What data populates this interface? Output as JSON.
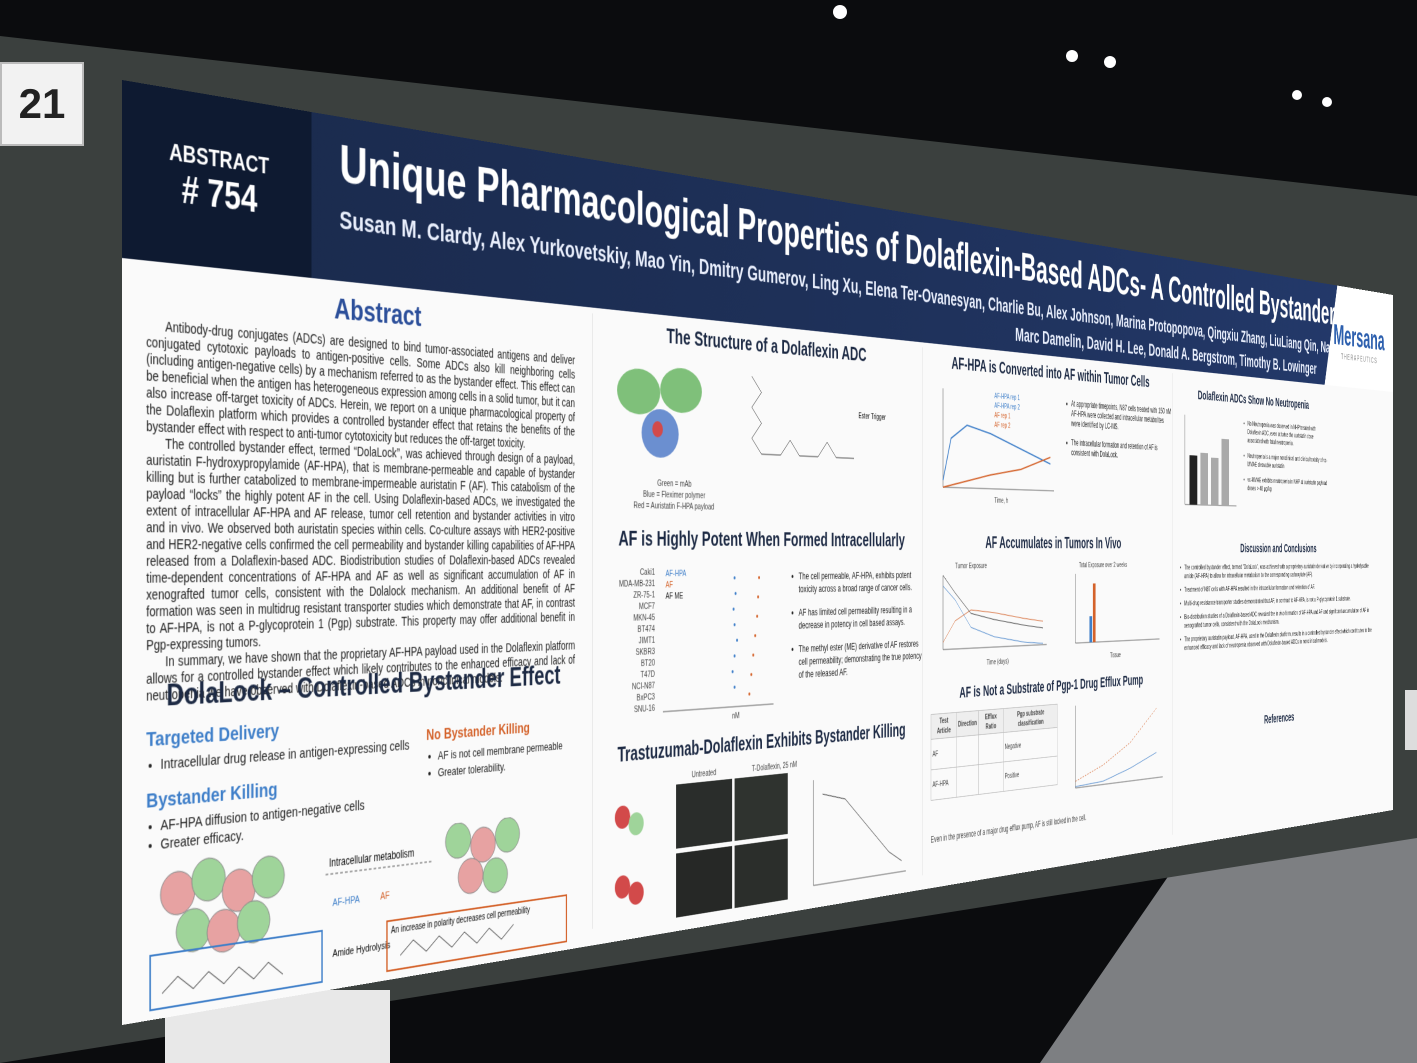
{
  "board_number": "21",
  "header": {
    "abstract_label": "ABSTRACT",
    "abstract_number": "# 754",
    "title": "Unique Pharmacological Properties of Dolaflexin-Based ADCs- A Controlled Bystander Effect",
    "authors_line1": "Susan M. Clardy, Alex Yurkovetskiy, Mao Yin, Dmitry Gumerov, Ling Xu, Elena Ter-Ovanesyan, Charlie Bu, Alex Johnson, Marina Protopopova, Qingxiu Zhang, LiuLiang Qin, Natalya Bodyak,",
    "authors_line2": "Marc Damelin, David H. Lee, Donald A. Bergstrom, Timothy B. Lowinger",
    "logo": "Mersana",
    "logo_sub": "THERAPEUTICS"
  },
  "abstract": {
    "heading": "Abstract",
    "paragraphs": [
      "Antibody-drug conjugates (ADCs) are designed to bind tumor-associated antigens and deliver conjugated cytotoxic payloads to antigen-positive cells. Some ADCs also kill neighboring cells (including antigen-negative cells) by a mechanism referred to as the bystander effect. This effect can be beneficial when the antigen has heterogeneous expression among cells in a solid tumor, but it can also increase off-target toxicity of ADCs. Herein, we report on a unique pharmacological property of the Dolaflexin platform which provides a controlled bystander effect that retains the benefits of the bystander effect with respect to anti-tumor cytotoxicity but reduces the off-target toxicity.",
      "The controlled bystander effect, termed “DolaLock”, was achieved through design of a payload, auristatin F-hydroxypropylamide (AF-HPA), that is membrane-permeable and capable of bystander killing but is further catabolized to membrane-impermeable auristatin F (AF). This catabolism of the payload “locks” the highly potent AF in the cell. Using Dolaflexin-based ADCs, we investigated the extent of intracellular AF-HPA and AF release, tumor cell retention and bystander activities in vitro and in vivo. We observed both auristatin species within cells. Co-culture assays with HER2-positive and HER2-negative cells confirmed the cell permeability and bystander killing capabilities of AF-HPA released from a Dolaflexin-based ADC. Biodistribution studies of Dolaflexin-based ADCs revealed time-dependent concentrations of AF-HPA and AF as well as significant accumulation of AF in xenografted tumor cells, consistent with the Dolalock mechanism. An additional benefit of AF formation was seen in multidrug resistant transporter studies which demonstrate that AF, in contrast to AF-HPA, is not a P-glycoprotein 1 (Pgp) substrate. This property may offer additional benefit in Pgp-expressing tumors.",
      "In summary, we have shown that the proprietary AF-HPA payload used in the Dolaflexin platform allows for a controlled bystander effect which likely contributes to the enhanced efficacy and lack of neutropenia we have observed with Dolaflexin-based ADCs in nonclinical models."
    ]
  },
  "dolalock": {
    "heading": "DolaLock – Controlled Bystander Effect",
    "targeted_heading": "Targeted Delivery",
    "targeted_bullet": "Intracellular drug release in antigen-expressing cells",
    "bystander_heading": "Bystander Killing",
    "bystander_bullets": [
      "AF-HPA diffusion to antigen-negative cells",
      "Greater efficacy."
    ],
    "no_bystander_heading": "No Bystander Killing",
    "no_bystander_bullets": [
      "AF is not cell membrane permeable",
      "Greater tolerability."
    ],
    "metabolism": "Intracellular metabolism",
    "label_afhpa": "AF-HPA",
    "label_af": "AF",
    "polarity": "An increase in polarity decreases cell permeability",
    "hydrolysis": "Amide Hydrolysis"
  },
  "structure": {
    "heading": "The Structure of a Dolaflexin ADC",
    "legend": [
      "Green = mAb",
      "Blue = Fleximer polymer",
      "Red = Auristatin F-HPA payload"
    ],
    "ester": "Ester Trigger"
  },
  "potent": {
    "heading": "AF is Highly Potent When Formed Intracellularly",
    "legend": [
      "AF-HPA",
      "AF",
      "AF ME"
    ],
    "cell_lines": [
      "Caki1",
      "MDA-MB-231",
      "ZR-75-1",
      "MCF7",
      "MKN-45",
      "BT474",
      "JIMT1",
      "SKBR3",
      "BT20",
      "T47D",
      "NCI-N87",
      "BxPC3",
      "SNU-16"
    ],
    "axis": "nM",
    "bullets": [
      "The cell permeable, AF-HPA, exhibits potent toxicity across a broad range of cancer cells.",
      "AF has limited cell permeability resulting in a decrease in potency in cell based assays.",
      "The methyl ester (ME) derivative of AF restores cell permeability; demonstrating the true potency of the released AF."
    ]
  },
  "bystander": {
    "heading": "Trastuzumab-Dolaflexin Exhibits Bystander Killing",
    "col1": "Untreated",
    "col2": "T-Dolaflexin, 25 nM"
  },
  "conversion": {
    "heading": "AF-HPA is Converted into AF within Tumor Cells",
    "legend": [
      "AF-HPA rep 1",
      "AF-HPA rep 2",
      "AF rep 1",
      "AF rep 2"
    ],
    "x_label": "Time, h",
    "bullets": [
      "At appropriate timepoints, N87 cells treated with 150 nM AF-HPA were collected and intracellular metabolites were identified by LC-MS.",
      "The intracellular formation and retention of AF is consistent with DolaLock."
    ]
  },
  "accumulation": {
    "heading": "AF Accumulates in Tumors In Vivo",
    "left_title": "Tumor Exposure",
    "right_title": "Total Exposure over 2 weeks",
    "left_x": "Time (days)",
    "right_x": "Tissue"
  },
  "pgp": {
    "heading": "AF is Not a Substrate of Pgp-1 Drug Efflux Pump",
    "columns": [
      "Test Article",
      "Direction",
      "Efflux Ratio",
      "Pgp substrate classification"
    ],
    "rows": [
      [
        "AF",
        "Negative"
      ],
      [
        "AF-HPA",
        "Positive"
      ]
    ],
    "footnote": "Even in the presence of a major drug efflux pump, AF is still locked in the cell."
  },
  "neutropenia": {
    "heading": "Dolaflexin ADCs Show No Neutropenia",
    "bullets": [
      "No Neutropenia was observed in NHP treated with Dolaflexin ADC, even at twice the auristatin dose associated with fatal neutropenia.",
      "Neutropenia is a major nonclinical and clinical toxicity of vc-MMAE cleavable auristatin",
      "vc-MMAE exhibits neutropenia in NHP at auristatin payload doses > 48 µg/kg"
    ]
  },
  "discussion": {
    "heading": "Discussion and Conclusions",
    "bullets": [
      "The controlled bystander effect, termed “DolaLock”, was achieved with a proprietary auristatin derivative by incorporating a hydrolysable amide (AF-HPA) to allow for intracellular metabolism to the corresponding carboxylate (AF).",
      "Treatment of N87 cells with AF-HPA resulted in the intracellular formation and retention of AF.",
      "Multi-drug resistance transporter studies demonstrated that AF, in contrast to AF-HPA, is not a P-glycoprotein 1 substrate.",
      "Bio-distribution studies of a Dolaflexin-based ADC revealed the in vivo formation of AF-HPA and AF and significant accumulation of AF in xenografted tumor cells, consistent with the DolaLock mechanism.",
      "The proprietary auristatin payload, AF-HPA, used in the Dolaflexin platform, results in a controlled bystander effect which contributes to the enhanced efficacy and lack of neutropenia observed with Dolaflexin-based ADCs in nonclinical models."
    ]
  },
  "references": {
    "heading": "References"
  }
}
